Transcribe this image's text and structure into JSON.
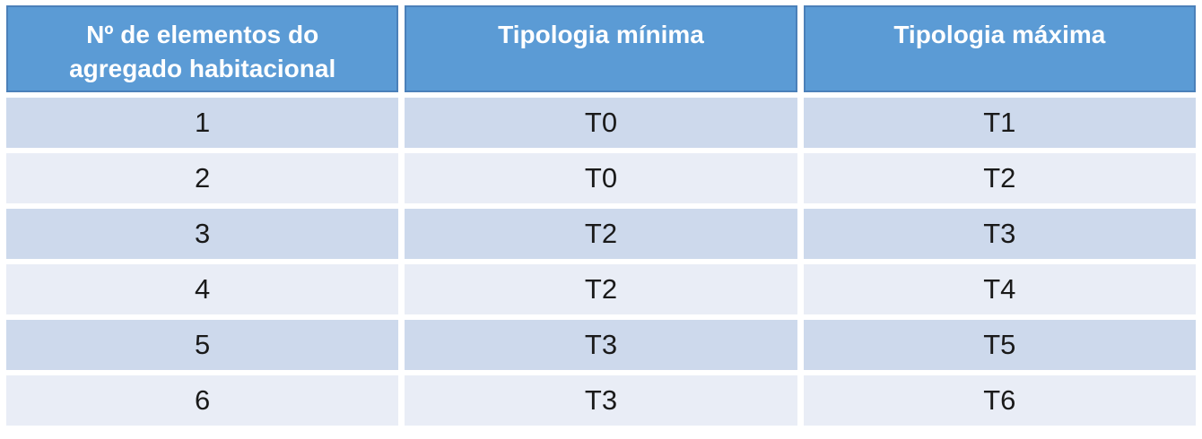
{
  "table": {
    "columns": [
      "Nº de elementos do agregado habitacional",
      "Tipologia mínima",
      "Tipologia máxima"
    ],
    "rows": [
      [
        "1",
        "T0",
        "T1"
      ],
      [
        "2",
        "T0",
        "T2"
      ],
      [
        "3",
        "T2",
        "T3"
      ],
      [
        "4",
        "T2",
        "T4"
      ],
      [
        "5",
        "T3",
        "T5"
      ],
      [
        "6",
        "T3",
        "T6"
      ]
    ],
    "colors": {
      "header_bg": "#5b9bd5",
      "header_border": "#4b80b9",
      "header_text": "#ffffff",
      "row_band_dark": "#cdd9ec",
      "row_band_light": "#e9edf6",
      "body_text": "#1a1a1a",
      "page_background": "#ffffff"
    }
  }
}
